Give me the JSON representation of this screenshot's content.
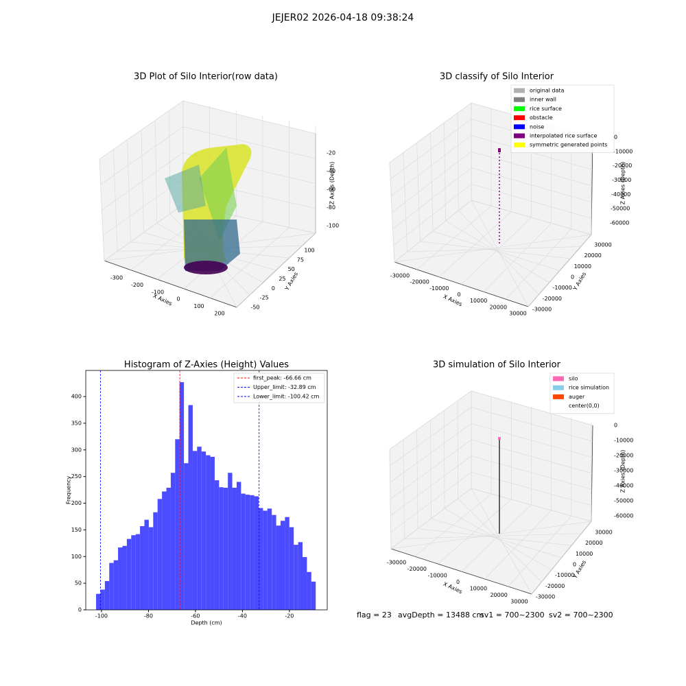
{
  "title": "JEJER02 2026-04-18 09:38:24",
  "chart_data": [
    {
      "type": "scatter3d",
      "title": "3D Plot of Silo Interior(row data)",
      "x_label": "X Axies",
      "y_label": "Y Axies",
      "z_label": "Z Axies (Depth)",
      "xticks": [
        -300,
        -200,
        -100,
        0,
        100,
        200
      ],
      "yticks": [
        -50,
        -25,
        0,
        25,
        50,
        75,
        100
      ],
      "zticks": [
        -20,
        -40,
        -60,
        -80,
        -100
      ]
    },
    {
      "type": "scatter3d",
      "title": "3D classify of Silo Interior",
      "x_label": "X Axies",
      "y_label": "Y Axies",
      "z_label": "Z Axies (Depth)",
      "xticks": [
        -30000,
        -20000,
        -10000,
        0,
        10000,
        20000,
        30000
      ],
      "yticks": [
        -30000,
        -20000,
        -10000,
        0,
        10000,
        20000,
        30000
      ],
      "zticks": [
        0,
        -10000,
        -20000,
        -30000,
        -40000,
        -50000,
        -60000
      ],
      "legend": [
        {
          "name": "original data",
          "color": "#b0b0b0"
        },
        {
          "name": "inner wall",
          "color": "#808080"
        },
        {
          "name": "rice surface",
          "color": "#00ff00"
        },
        {
          "name": "obstacle",
          "color": "#ff0000"
        },
        {
          "name": "noise",
          "color": "#0000ff"
        },
        {
          "name": "interpolated rice surface",
          "color": "#800080"
        },
        {
          "name": "symmetric generated points",
          "color": "#ffff00"
        }
      ]
    },
    {
      "type": "histogram",
      "title": "Histogram of Z-Axies (Height) Values",
      "x_label": "Depth (cm)",
      "y_label": "Frequency",
      "color": "#4b4bff",
      "bins": [
        -102.3,
        -100.43,
        -98.56,
        -96.69,
        -94.82,
        -92.95,
        -91.08,
        -89.21,
        -87.34,
        -85.47,
        -83.6,
        -81.73,
        -79.86,
        -77.99,
        -76.12,
        -74.25,
        -72.38,
        -70.51,
        -68.64,
        -66.77,
        -64.9,
        -63.03,
        -61.16,
        -59.29,
        -57.42,
        -55.55,
        -53.68,
        -51.81,
        -49.94,
        -48.07,
        -46.2,
        -44.33,
        -42.46,
        -40.59,
        -38.72,
        -36.85,
        -34.98,
        -33.11,
        -31.24,
        -29.37,
        -27.5,
        -25.63,
        -23.76,
        -21.89,
        -20.02,
        -18.15,
        -16.28,
        -14.41,
        -12.54,
        -10.67,
        -8.8
      ],
      "values": [
        30,
        38,
        54,
        88,
        93,
        117,
        120,
        133,
        140,
        142,
        157,
        169,
        155,
        183,
        208,
        222,
        229,
        257,
        320,
        427,
        275,
        384,
        298,
        306,
        297,
        290,
        287,
        243,
        230,
        229,
        257,
        229,
        240,
        218,
        216,
        215,
        213,
        191,
        186,
        190,
        178,
        158,
        167,
        174,
        155,
        122,
        127,
        99,
        71,
        53
      ],
      "xlim": [
        -106.7,
        -3.9
      ],
      "ylim": [
        0,
        449
      ],
      "xticks": [
        -100,
        -80,
        -60,
        -40,
        -20
      ],
      "yticks": [
        0,
        50,
        100,
        150,
        200,
        250,
        300,
        350,
        400
      ],
      "lines": [
        {
          "name": "first_peak: -66.66 cm",
          "value": -66.66,
          "color": "#ff0000"
        },
        {
          "name": "Upper_limit: -32.89 cm",
          "value": -32.89,
          "color": "#0000ff"
        },
        {
          "name": "Lower_limit: -100.42 cm",
          "value": -100.42,
          "color": "#0000ff"
        }
      ]
    },
    {
      "type": "scatter3d",
      "title": "3D simulation of Silo Interior",
      "x_label": "X Axies",
      "y_label": "Y Axies",
      "z_label": "Z Axies (Depth)",
      "xticks": [
        -30000,
        -20000,
        -10000,
        0,
        10000,
        20000,
        30000
      ],
      "yticks": [
        -30000,
        -20000,
        -10000,
        0,
        10000,
        20000,
        30000
      ],
      "zticks": [
        0,
        -10000,
        -20000,
        -30000,
        -40000,
        -50000,
        -60000
      ],
      "legend": [
        {
          "name": "silo",
          "color": "#ff69b4"
        },
        {
          "name": "rice simulation",
          "color": "#87ceeb"
        },
        {
          "name": "auger",
          "color": "#ff4500"
        },
        {
          "name": "center(0,0)",
          "color": "#ffffff"
        }
      ]
    }
  ],
  "footer": [
    "flag = 23",
    "avgDepth = 13488 cm",
    "sv1 = 700~2300",
    "sv2 = 700~2300"
  ]
}
